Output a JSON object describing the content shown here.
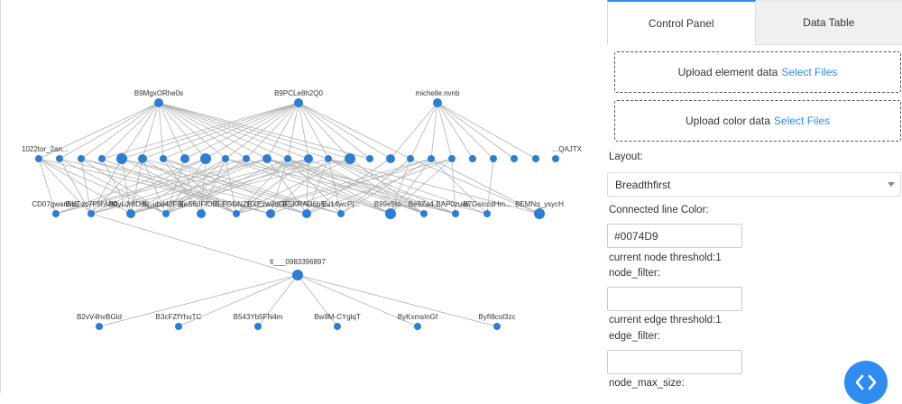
{
  "graph": {
    "edge_color": "#b3b3b3",
    "node_color": "#2a7fd4",
    "nodes": [
      {
        "label": "B9MgxORhe0s"
      },
      {
        "label": "B9PCLe8h2Q0"
      },
      {
        "label": "michelle.nvnb"
      },
      {
        "label": "1022tor_2an..."
      },
      {
        "label": "lt___0983396897"
      },
      {
        "label": "CD07gwan5bZ"
      },
      {
        "label": "BnE-zc7F5hMI0"
      },
      {
        "label": "B0yLJr8Dm..."
      },
      {
        "label": "Bj_ubd42F0(..."
      },
      {
        "label": "BeS6dFfOE..."
      },
      {
        "label": "B-FGDNZE..."
      },
      {
        "label": "BXEzw2dGF..."
      },
      {
        "label": "BSKRAD6b5..."
      },
      {
        "label": "Bv14wcP|..."
      },
      {
        "label": "B99e5to..."
      },
      {
        "label": "Be9Za4..."
      },
      {
        "label": "BAP0zuwl..."
      },
      {
        "label": "B7GsiccdHm..."
      },
      {
        "label": "BEMNq_ysycH"
      },
      {
        "label": "B2vV4hvBGld"
      },
      {
        "label": "B3cFZfYhuTC"
      },
      {
        "label": "B543Yb5FN4m"
      },
      {
        "label": "Bw9M-CYglqT"
      },
      {
        "label": "ByKxmsInGf"
      },
      {
        "label": "ByfI8col3zc"
      },
      {
        "label": "...QAJTX"
      }
    ]
  },
  "tabs": [
    {
      "label": "Control Panel"
    },
    {
      "label": "Data Table"
    }
  ],
  "upload_element": {
    "text": "Upload element data",
    "link": "Select Files"
  },
  "upload_color": {
    "text": "Upload color data",
    "link": "Select Files"
  },
  "layout": {
    "label": "Layout:",
    "value": "Breadthfirst"
  },
  "line_color": {
    "label": "Connected line Color:",
    "value": "#0074D9"
  },
  "node_threshold": {
    "label": "current node threshold:1"
  },
  "node_filter": {
    "label": "node_filter:",
    "value": ""
  },
  "edge_threshold": {
    "label": "current edge threshold:1"
  },
  "edge_filter": {
    "label": "edge_filter:",
    "value": ""
  },
  "node_max_size": {
    "label": "node_max_size:"
  }
}
